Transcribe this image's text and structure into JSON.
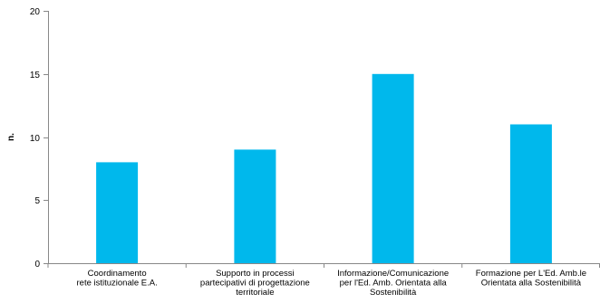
{
  "chart_data": {
    "type": "bar",
    "title": "",
    "xlabel": "",
    "ylabel": "n.",
    "ylim": [
      0,
      20
    ],
    "yticks": [
      0,
      5,
      10,
      15,
      20
    ],
    "grid": false,
    "legend": "none",
    "categories": [
      [
        "Coordinamento",
        "rete  istituzionale E.A."
      ],
      [
        "Supporto in processi",
        "partecipativi di progettazione",
        "territoriale"
      ],
      [
        "Informazione/Comunicazione",
        "per l'Ed. Amb. Orientata alla",
        "Sostenibilità"
      ],
      [
        "Formazione per L'Ed. Amb.le",
        "Orientata alla Sostenibilità"
      ]
    ],
    "values": [
      8,
      9,
      15,
      11
    ],
    "colors": {
      "bar": "#00B8EC",
      "axis": "#888888",
      "tick": "#888888",
      "text": "#000000"
    }
  }
}
